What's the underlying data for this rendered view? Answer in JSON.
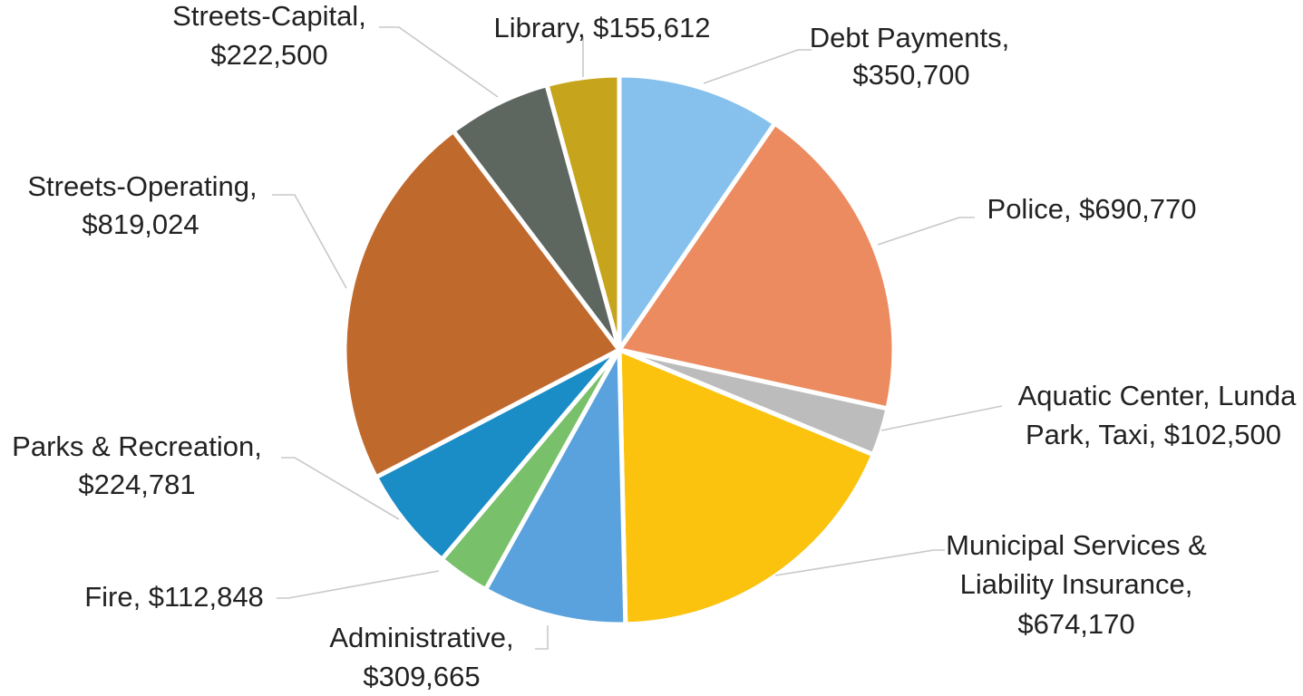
{
  "chart_data": {
    "type": "pie",
    "title": "",
    "start_angle_deg": 0,
    "direction": "clockwise",
    "slices": [
      {
        "name": "Debt Payments",
        "value": 350700,
        "label": "$350,700",
        "color": "#86c1ee"
      },
      {
        "name": "Police",
        "value": 690770,
        "label": "$690,770",
        "color": "#ec8b5f"
      },
      {
        "name": "Aquatic Center, Lunda Park, Taxi",
        "value": 102500,
        "label": "$102,500",
        "color": "#bcbcbc"
      },
      {
        "name": "Municipal Services & Liability Insurance",
        "value": 674170,
        "label": "$674,170",
        "color": "#fbc30d"
      },
      {
        "name": "Administrative",
        "value": 309665,
        "label": "$309,665",
        "color": "#5aa2dd"
      },
      {
        "name": "Fire",
        "value": 112848,
        "label": "$112,848",
        "color": "#79c06a"
      },
      {
        "name": "Parks & Recreation",
        "value": 224781,
        "label": "$224,781",
        "color": "#1a8cc6"
      },
      {
        "name": "Streets-Operating",
        "value": 819024,
        "label": "$819,024",
        "color": "#c0692d"
      },
      {
        "name": "Streets-Capital",
        "value": 222500,
        "label": "$222,500",
        "color": "#5e6660"
      },
      {
        "name": "Library",
        "value": 155612,
        "label": "$155,612",
        "color": "#c6a41c"
      }
    ]
  },
  "labels": {
    "debt_1": "Debt Payments,",
    "debt_2": "$350,700",
    "police_1": "Police,  $690,770",
    "aquatic_1": "Aquatic Center, Lunda",
    "aquatic_2": "Park, Taxi,  $102,500",
    "municipal_1": "Municipal Services &",
    "municipal_2": "Liability Insurance,",
    "municipal_3": "$674,170",
    "admin_1": "Administrative,",
    "admin_2": "$309,665",
    "fire_1": "Fire,  $112,848",
    "parks_1": "Parks & Recreation,",
    "parks_2": "$224,781",
    "streets_op_1": "Streets-Operating,",
    "streets_op_2": "$819,024",
    "streets_cap_1": "Streets-Capital,",
    "streets_cap_2": "$222,500",
    "library_1": "Library,  $155,612"
  }
}
